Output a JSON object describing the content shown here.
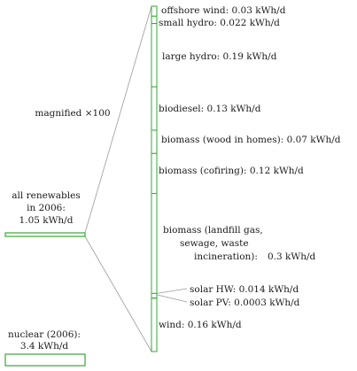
{
  "colors": {
    "bar_stroke": "#3aa63a",
    "bar_fill": "#ffffff",
    "connector": "#9a9a9a",
    "text": "#1a1a1a"
  },
  "left": {
    "all_renewables": {
      "lines": [
        "all renewables",
        "in 2006:",
        "1.05 kWh/d"
      ],
      "value": 1.05
    },
    "magnified": "magnified ×100",
    "nuclear": {
      "lines": [
        "nuclear (2006):",
        "3.4 kWh/d"
      ],
      "value": 3.4
    }
  },
  "chart_data": {
    "type": "bar",
    "title": "",
    "unit": "kWh/d",
    "items": [
      {
        "name": "offshore wind",
        "value": 0.03,
        "label": [
          "offshore wind: 0.03 kWh/d"
        ]
      },
      {
        "name": "small hydro",
        "value": 0.022,
        "label": [
          "small hydro: 0.022 kWh/d"
        ]
      },
      {
        "name": "large hydro",
        "value": 0.19,
        "label": [
          "large hydro: 0.19 kWh/d"
        ]
      },
      {
        "name": "biodiesel",
        "value": 0.13,
        "label": [
          "biodiesel: 0.13 kWh/d"
        ]
      },
      {
        "name": "biomass (wood in homes)",
        "value": 0.07,
        "label": [
          "biomass (wood in homes): 0.07 kWh/d"
        ]
      },
      {
        "name": "biomass (cofiring)",
        "value": 0.12,
        "label": [
          "biomass (cofiring): 0.12 kWh/d"
        ]
      },
      {
        "name": "biomass (landfill gas, sewage, waste incineration)",
        "value": 0.3,
        "label": [
          "biomass (landfill gas,",
          "sewage, waste",
          "incineration):",
          "0.3 kWh/d"
        ]
      },
      {
        "name": "solar HW",
        "value": 0.014,
        "label": [
          "solar HW: 0.014 kWh/d"
        ]
      },
      {
        "name": "solar PV",
        "value": 0.0003,
        "label": [
          "solar PV: 0.0003 kWh/d"
        ]
      },
      {
        "name": "wind",
        "value": 0.16,
        "label": [
          "wind: 0.16 kWh/d"
        ]
      }
    ]
  }
}
